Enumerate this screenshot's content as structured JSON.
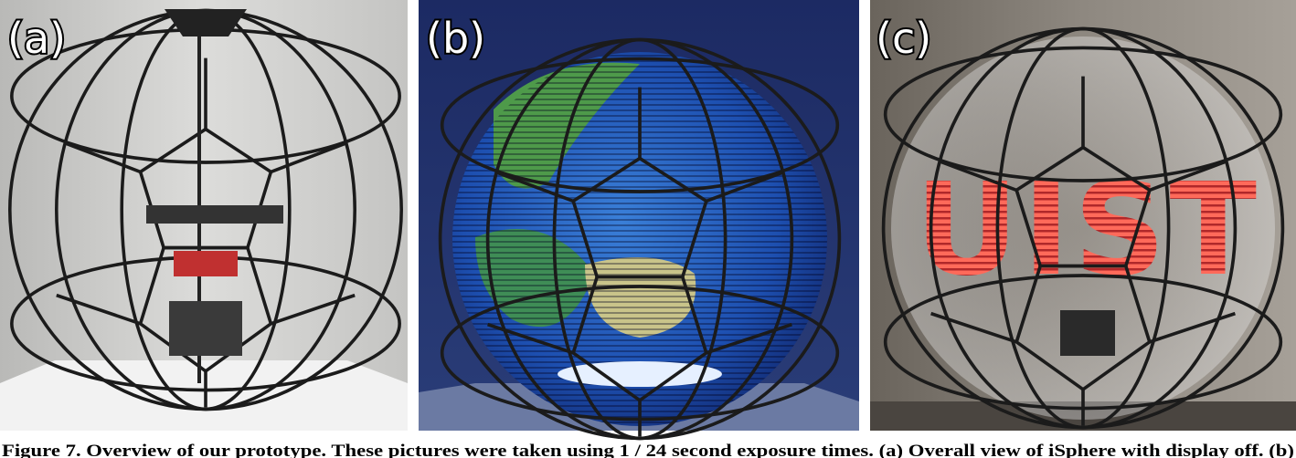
{
  "panels": [
    {
      "label": "(a)"
    },
    {
      "label": "(b)"
    },
    {
      "label": "(c)",
      "display_text": "UIST"
    }
  ],
  "caption": "Figure 7. Overview of our prototype. These pictures were taken using 1 / 24 second exposure times. (a) Overall view of iSphere with display off. (b)"
}
